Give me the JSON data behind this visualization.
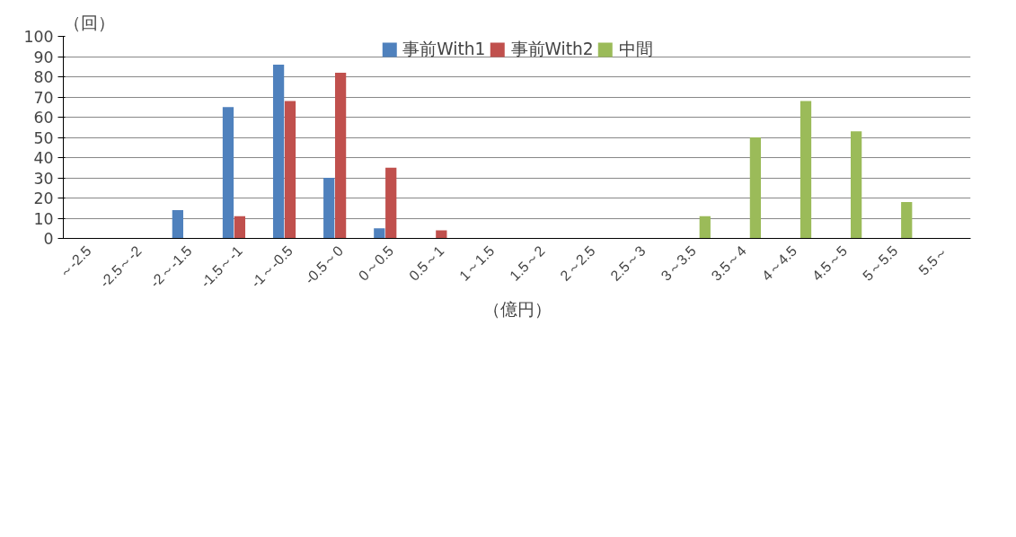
{
  "chart_data": {
    "type": "bar",
    "ylabel": "（回）",
    "xlabel": "（億円）",
    "categories": [
      "～-2.5",
      "-2.5～-2",
      "-2～-1.5",
      "-1.5～-1",
      "-1～-0.5",
      "-0.5～0",
      "0～0.5",
      "0.5～1",
      "1～1.5",
      "1.5～2",
      "2～2.5",
      "2.5～3",
      "3～3.5",
      "3.5～4",
      "4～4.5",
      "4.5～5",
      "5～5.5",
      "5.5～"
    ],
    "series": [
      {
        "name": "事前With1",
        "color": "#4f81bd",
        "values": [
          0,
          0,
          14,
          65,
          86,
          30,
          5,
          0,
          0,
          0,
          0,
          0,
          0,
          0,
          0,
          0,
          0,
          0
        ]
      },
      {
        "name": "事前With2",
        "color": "#c0504d",
        "values": [
          0,
          0,
          0,
          11,
          68,
          82,
          35,
          4,
          0,
          0,
          0,
          0,
          0,
          0,
          0,
          0,
          0,
          0
        ]
      },
      {
        "name": "中間",
        "color": "#9bbb59",
        "values": [
          0,
          0,
          0,
          0,
          0,
          0,
          0,
          0,
          0,
          0,
          0,
          0,
          11,
          50,
          68,
          53,
          18,
          0
        ]
      }
    ],
    "ylim": [
      0,
      100
    ],
    "yticks": [
      0,
      10,
      20,
      30,
      40,
      50,
      60,
      70,
      80,
      90,
      100
    ],
    "grid": "y",
    "legend": "top"
  }
}
